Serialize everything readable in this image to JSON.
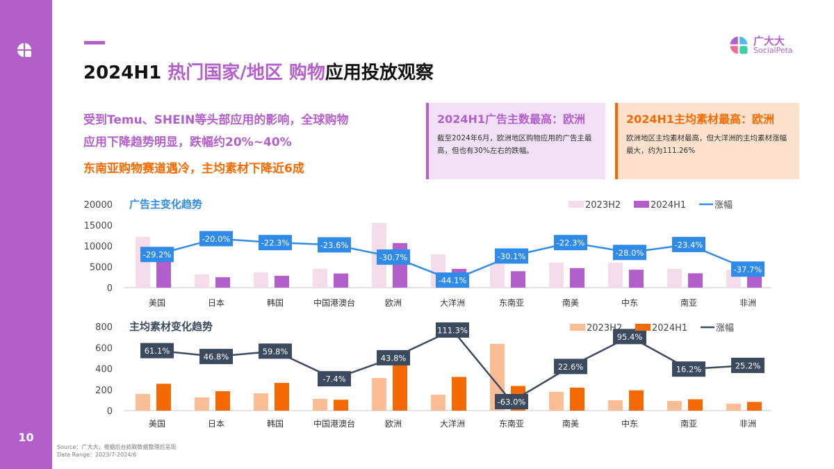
{
  "page_number": "10",
  "title": {
    "part1": "2024H1 ",
    "part2": "热门国家/地区 购物",
    "part3": "应用投放观察"
  },
  "brand": {
    "name": "广大大",
    "sub": "SocialPeta"
  },
  "headlines": [
    "受到Temu、SHEIN等头部应用的影响，全球购物",
    "应用下降趋势明显，跌幅约20%~40%",
    "东南亚购物赛道遇冷，主均素材下降近6成"
  ],
  "box1": {
    "title": "2024H1广告主数最高：欧洲",
    "text": "截至2024年6月，欧洲地区购物应用的广告主最高，但也有30%左右的跌幅。"
  },
  "box2": {
    "title": "2024H1主均素材最高：欧洲",
    "text": "欧洲地区主均素材最高，但大洋洲的主均素材涨幅最大，约为111.26%"
  },
  "source": {
    "line1": "Source：广大大，根据后台抓取数据整理后呈现",
    "line2": "Date Range：2023/7-2024/6"
  },
  "colors": {
    "purple": "#b35fcb",
    "light_pink": "#f5dcea",
    "orange": "#f56a00",
    "light_orange": "#fbbd94",
    "blue": "#2f8ae8",
    "navy": "#3b4a5f"
  },
  "chart_data": [
    {
      "type": "bar",
      "title": "广告主变化趋势",
      "ylim": [
        0,
        20000
      ],
      "yticks": [
        "0",
        "5000",
        "10000",
        "15000",
        "20000"
      ],
      "legend_position": "top-right",
      "grid": false,
      "categories": [
        "美国",
        "日本",
        "韩国",
        "中国港澳台",
        "欧洲",
        "大洋洲",
        "东南亚",
        "南美",
        "中东",
        "南亚",
        "非洲"
      ],
      "series": [
        {
          "name": "2023H2",
          "type": "bar",
          "color": "#f5dcea",
          "values": [
            12200,
            3200,
            3700,
            4500,
            15500,
            8000,
            5700,
            6000,
            6000,
            4500,
            4300
          ]
        },
        {
          "name": "2024H1",
          "type": "bar",
          "color": "#b35fcb",
          "values": [
            8600,
            2500,
            2850,
            3400,
            10700,
            4500,
            3950,
            4700,
            4300,
            3450,
            2700
          ]
        },
        {
          "name": "涨幅",
          "type": "line",
          "axis": "secondary",
          "color": "#2f8ae8",
          "values": [
            -29.2,
            -20.0,
            -22.3,
            -23.6,
            -30.7,
            -44.1,
            -30.1,
            -22.3,
            -28.0,
            -23.4,
            -37.7
          ],
          "labels": [
            "-29.2%",
            "-20.0%",
            "-22.3%",
            "-23.6%",
            "-30.7%",
            "-44.1%",
            "-30.1%",
            "-22.3%",
            "-28.0%",
            "-23.4%",
            "-37.7%"
          ]
        }
      ]
    },
    {
      "type": "bar",
      "title": "主均素材变化趋势",
      "ylim": [
        0,
        800
      ],
      "yticks": [
        "0",
        "200",
        "400",
        "600",
        "800"
      ],
      "legend_position": "top-right",
      "grid": false,
      "categories": [
        "美国",
        "日本",
        "韩国",
        "中国港澳台",
        "欧洲",
        "大洋洲",
        "东南亚",
        "南美",
        "中东",
        "南亚",
        "非洲"
      ],
      "series": [
        {
          "name": "2023H2",
          "type": "bar",
          "color": "#fbbd94",
          "values": [
            159,
            126,
            165,
            112,
            311,
            152,
            635,
            179,
            99,
            93,
            66
          ]
        },
        {
          "name": "2024H1",
          "type": "bar",
          "color": "#f56a00",
          "values": [
            256,
            185,
            264,
            104,
            447,
            321,
            235,
            219,
            193,
            108,
            83
          ]
        },
        {
          "name": "涨幅",
          "type": "line",
          "axis": "secondary",
          "color": "#3b4a5f",
          "values": [
            61.1,
            46.8,
            59.8,
            -7.4,
            43.8,
            111.3,
            -63.0,
            22.6,
            95.4,
            16.2,
            25.2
          ],
          "labels": [
            "61.1%",
            "46.8%",
            "59.8%",
            "-7.4%",
            "43.8%",
            "111.3%",
            "-63.0%",
            "22.6%",
            "95.4%",
            "16.2%",
            "25.2%"
          ]
        }
      ]
    }
  ]
}
